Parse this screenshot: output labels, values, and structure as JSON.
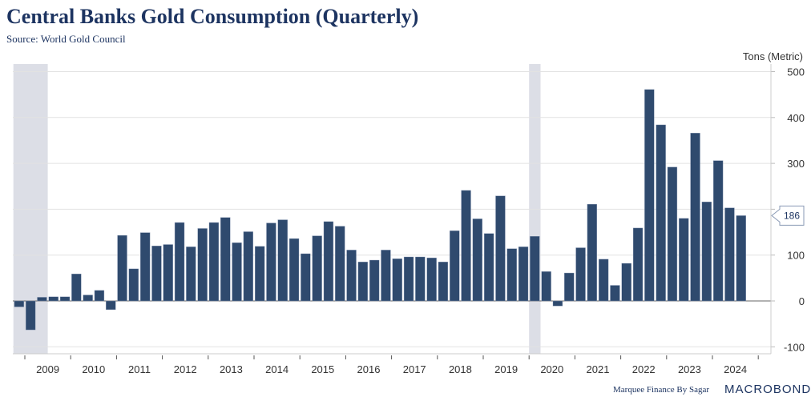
{
  "header": {
    "title": "Central Banks Gold Consumption (Quarterly)",
    "source": "Source: World Gold Council",
    "unit": "Tons (Metric)"
  },
  "footer": {
    "credit": "Marquee Finance By Sagar",
    "brand": "MACROBOND"
  },
  "colors": {
    "bar": "#2f4a6e",
    "shade": "#dcdee6",
    "title": "#1d3461"
  },
  "chart_data": {
    "type": "bar",
    "title": "Central Banks Gold Consumption (Quarterly)",
    "ylabel": "Tons (Metric)",
    "ylim": [
      -115,
      500
    ],
    "yticks": [
      500,
      400,
      300,
      200,
      100,
      0,
      -100
    ],
    "ytick_labels": [
      "500",
      "400",
      "300",
      "",
      "100",
      "0",
      "-100"
    ],
    "grid": true,
    "axis_side": "right",
    "start_quarter": "2008Q4",
    "x_year_labels": [
      "2009",
      "2010",
      "2011",
      "2012",
      "2013",
      "2014",
      "2015",
      "2016",
      "2017",
      "2018",
      "2019",
      "2020",
      "2021",
      "2022",
      "2023",
      "2024"
    ],
    "values": [
      -13,
      -63,
      8,
      9,
      9,
      59,
      13,
      23,
      -19,
      143,
      70,
      149,
      120,
      123,
      171,
      118,
      158,
      171,
      182,
      127,
      151,
      119,
      170,
      177,
      136,
      103,
      142,
      173,
      163,
      111,
      85,
      89,
      111,
      92,
      96,
      96,
      94,
      85,
      153,
      241,
      179,
      147,
      229,
      114,
      118,
      141,
      64,
      -11,
      61,
      116,
      211,
      91,
      34,
      82,
      159,
      461,
      384,
      292,
      180,
      366,
      216,
      306,
      203,
      186
    ],
    "last_value_label": "186",
    "shaded_periods": [
      [
        "2008Q4",
        "2009Q2"
      ],
      [
        "2020Q1",
        "2020Q1"
      ]
    ]
  }
}
